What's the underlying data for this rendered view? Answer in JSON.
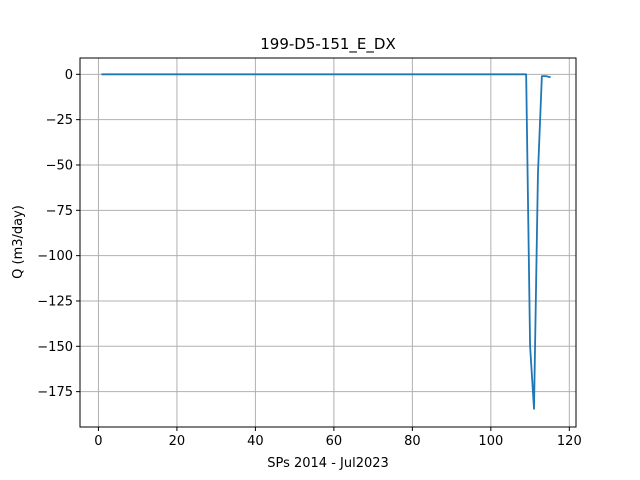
{
  "chart_data": {
    "type": "line",
    "title": "199-D5-151_E_DX",
    "xlabel": "SPs 2014 - Jul2023",
    "ylabel": "Q (m3/day)",
    "xlim": [
      -4.7,
      121.7
    ],
    "ylim": [
      -194.5,
      9.0
    ],
    "xticks": [
      0,
      20,
      40,
      60,
      80,
      100,
      120
    ],
    "yticks": [
      0,
      -25,
      -50,
      -75,
      -100,
      -125,
      -150,
      -175
    ],
    "xtick_labels": [
      "0",
      "20",
      "40",
      "60",
      "80",
      "100",
      "120"
    ],
    "ytick_labels": [
      "0",
      "−25",
      "−50",
      "−75",
      "−100",
      "−125",
      "−150",
      "−175"
    ],
    "grid": true,
    "series": [
      {
        "color": "#1f77b4",
        "x": [
          1,
          20,
          40,
          60,
          80,
          100,
          105,
          108,
          109,
          110,
          111,
          112,
          113,
          114,
          115
        ],
        "y": [
          0,
          0,
          0,
          0,
          0,
          0,
          0,
          0,
          0,
          -150,
          -184.5,
          -55,
          -1,
          -1,
          -1.5
        ]
      }
    ]
  }
}
